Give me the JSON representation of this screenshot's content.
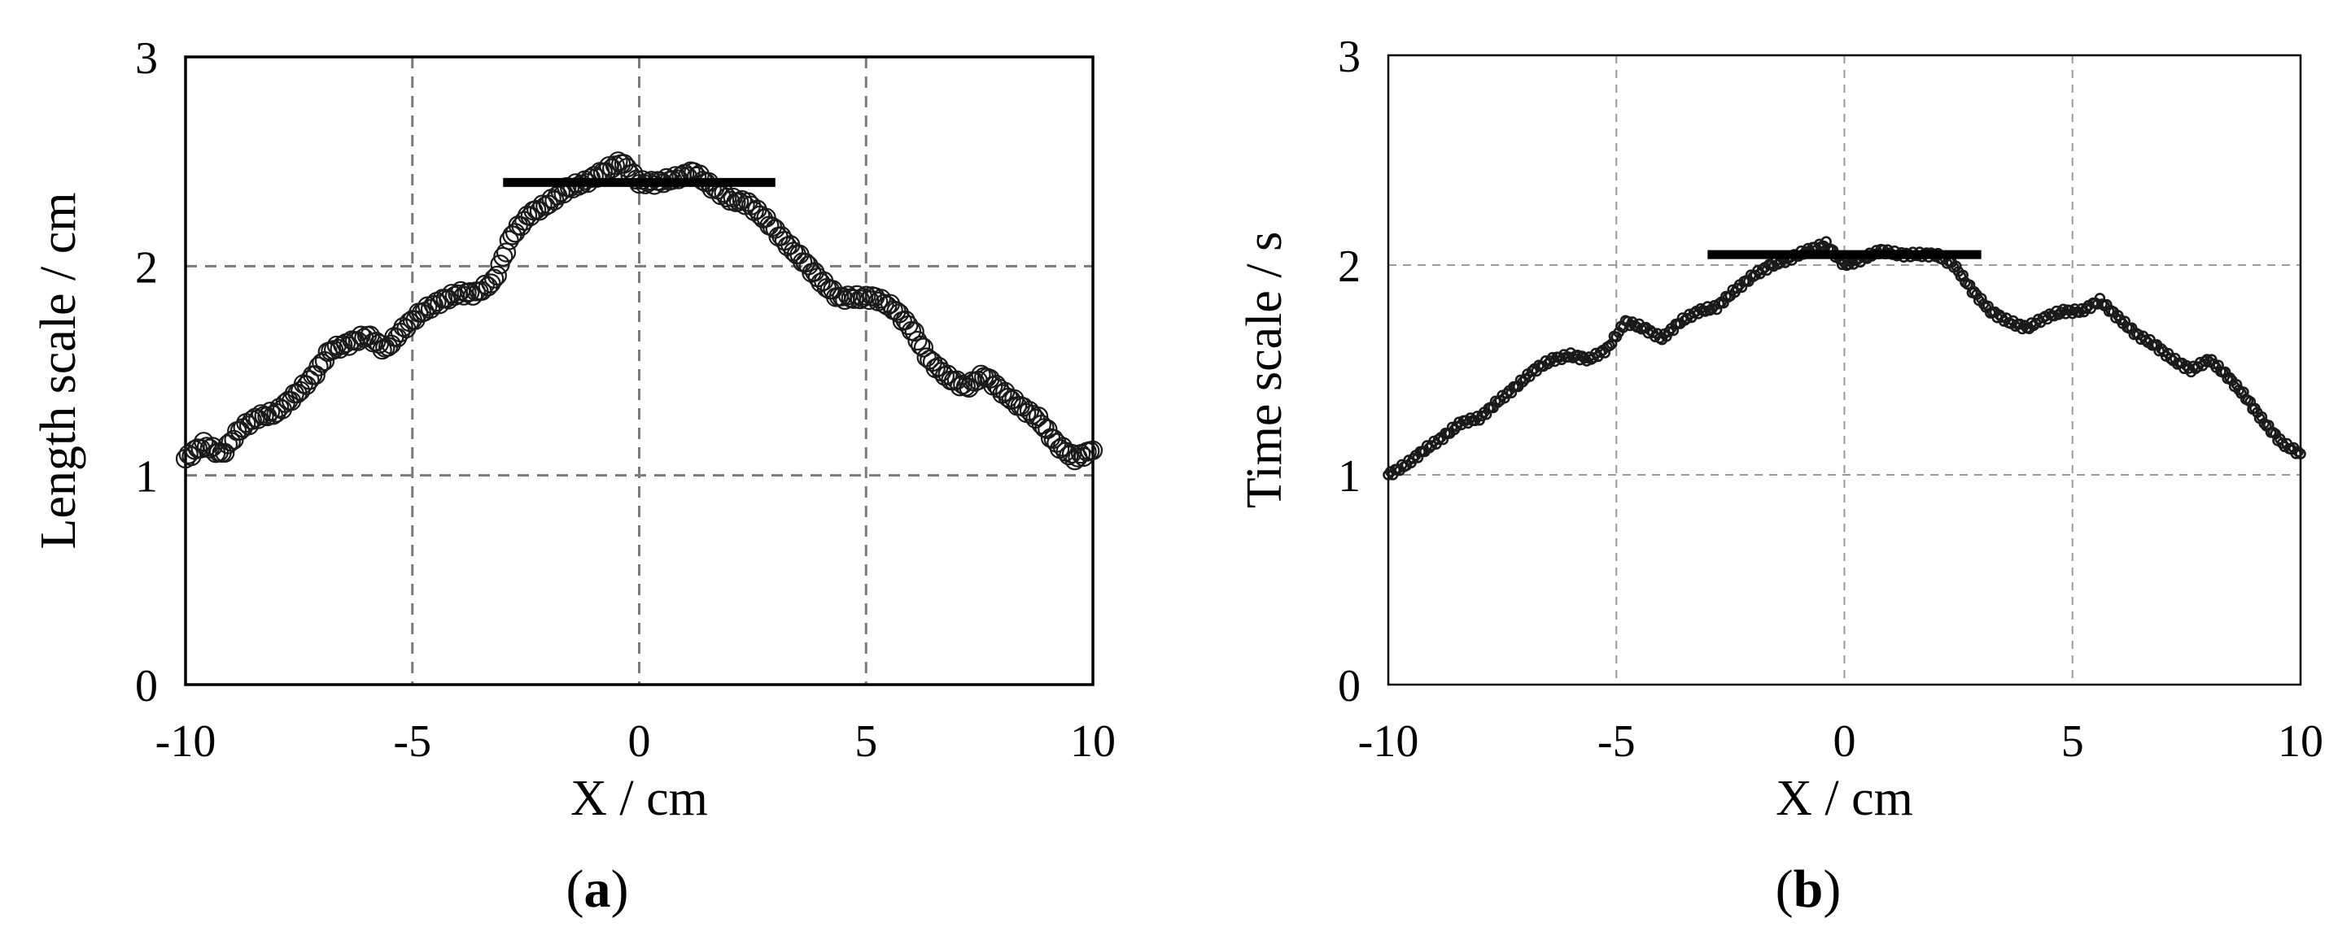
{
  "figure": {
    "panel_labels": [
      {
        "open": "(",
        "letter": "a",
        "close": ")"
      },
      {
        "open": "(",
        "letter": "b",
        "close": ")"
      }
    ]
  },
  "chart_data": [
    {
      "type": "scatter",
      "panel": "a",
      "xlabel": "X / cm",
      "ylabel": "Length scale / cm",
      "xlim": [
        -10,
        10
      ],
      "ylim": [
        0,
        3
      ],
      "xticks": [
        -10,
        -5,
        0,
        5,
        10
      ],
      "yticks": [
        0,
        1,
        2,
        3
      ],
      "grid": true,
      "marker": "open-circle-large",
      "mean_line": {
        "x": [
          -3,
          3
        ],
        "y": 2.4
      },
      "x": [
        -10.0,
        -9.6,
        -9.2,
        -8.8,
        -8.4,
        -8.0,
        -7.6,
        -7.2,
        -6.8,
        -6.4,
        -6.0,
        -5.6,
        -5.2,
        -4.8,
        -4.4,
        -4.0,
        -3.6,
        -3.2,
        -2.8,
        -2.4,
        -2.0,
        -1.6,
        -1.2,
        -0.8,
        -0.4,
        0.0,
        0.4,
        0.8,
        1.2,
        1.6,
        2.0,
        2.4,
        2.8,
        3.2,
        3.6,
        4.0,
        4.4,
        4.8,
        5.2,
        5.6,
        6.0,
        6.4,
        6.8,
        7.2,
        7.6,
        8.0,
        8.4,
        8.8,
        9.2,
        9.6,
        10.0
      ],
      "y": [
        1.08,
        1.15,
        1.1,
        1.22,
        1.28,
        1.3,
        1.38,
        1.47,
        1.6,
        1.63,
        1.67,
        1.6,
        1.7,
        1.78,
        1.83,
        1.87,
        1.87,
        1.93,
        2.15,
        2.25,
        2.3,
        2.37,
        2.4,
        2.45,
        2.5,
        2.4,
        2.4,
        2.42,
        2.45,
        2.38,
        2.32,
        2.3,
        2.22,
        2.12,
        2.03,
        1.93,
        1.85,
        1.85,
        1.85,
        1.8,
        1.7,
        1.55,
        1.47,
        1.42,
        1.48,
        1.4,
        1.33,
        1.27,
        1.15,
        1.08,
        1.12
      ]
    },
    {
      "type": "scatter",
      "panel": "b",
      "xlabel": "X / cm",
      "ylabel": "Time scale / s",
      "xlim": [
        -10,
        10
      ],
      "ylim": [
        0,
        3
      ],
      "xticks": [
        -10,
        -5,
        0,
        5,
        10
      ],
      "yticks": [
        0,
        1,
        2,
        3
      ],
      "grid": true,
      "marker": "open-circle-small",
      "mean_line": {
        "x": [
          -3,
          3
        ],
        "y": 2.05
      },
      "x": [
        -10.0,
        -9.6,
        -9.2,
        -8.8,
        -8.4,
        -8.0,
        -7.6,
        -7.2,
        -6.8,
        -6.4,
        -6.0,
        -5.6,
        -5.2,
        -4.8,
        -4.4,
        -4.0,
        -3.6,
        -3.2,
        -2.8,
        -2.4,
        -2.0,
        -1.6,
        -1.2,
        -0.8,
        -0.4,
        0.0,
        0.4,
        0.8,
        1.2,
        1.6,
        2.0,
        2.4,
        2.8,
        3.2,
        3.6,
        4.0,
        4.4,
        4.8,
        5.2,
        5.6,
        6.0,
        6.4,
        6.8,
        7.2,
        7.6,
        8.0,
        8.4,
        8.8,
        9.2,
        9.6,
        10.0
      ],
      "y": [
        1.0,
        1.05,
        1.12,
        1.18,
        1.25,
        1.27,
        1.35,
        1.42,
        1.5,
        1.55,
        1.57,
        1.55,
        1.6,
        1.73,
        1.7,
        1.65,
        1.73,
        1.78,
        1.8,
        1.88,
        1.95,
        2.0,
        2.03,
        2.07,
        2.1,
        2.0,
        2.03,
        2.07,
        2.05,
        2.05,
        2.05,
        2.0,
        1.88,
        1.78,
        1.73,
        1.7,
        1.75,
        1.78,
        1.78,
        1.83,
        1.75,
        1.67,
        1.62,
        1.55,
        1.5,
        1.55,
        1.47,
        1.37,
        1.25,
        1.15,
        1.1
      ]
    }
  ]
}
